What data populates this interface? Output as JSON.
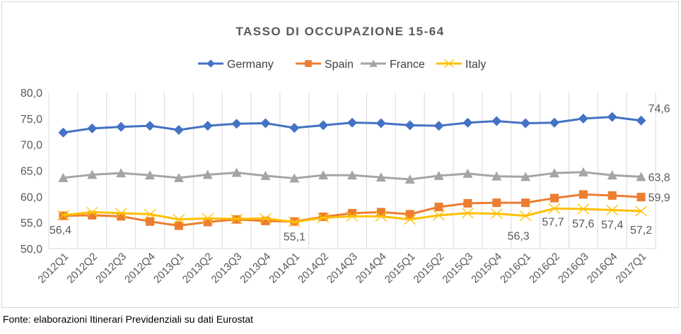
{
  "chart_data": {
    "type": "line",
    "title": "TASSO DI OCCUPAZIONE  15-64",
    "xlabel": "",
    "ylabel": "",
    "ylim": [
      50,
      80
    ],
    "yticks": [
      "50,0",
      "55,0",
      "60,0",
      "65,0",
      "70,0",
      "75,0",
      "80,0"
    ],
    "grid": "vertical",
    "legend_position": "top",
    "categories": [
      "2012Q1",
      "2012Q2",
      "2012Q3",
      "2012Q4",
      "2013Q1",
      "2013Q2",
      "2013Q3",
      "2013Q4",
      "2014Q1",
      "2014Q2",
      "2014Q3",
      "2014Q4",
      "2015Q1",
      "2015Q2",
      "2015Q3",
      "2015Q4",
      "2016Q1",
      "2016Q2",
      "2016Q3",
      "2016Q4",
      "2017Q1"
    ],
    "series": [
      {
        "name": "Germany",
        "color": "#4472c4",
        "marker": "diamond",
        "values": [
          72.3,
          73.1,
          73.4,
          73.6,
          72.8,
          73.6,
          74.0,
          74.1,
          73.2,
          73.7,
          74.2,
          74.1,
          73.7,
          73.6,
          74.2,
          74.5,
          74.1,
          74.2,
          75.0,
          75.3,
          74.6
        ],
        "labels": [
          {
            "index": 20,
            "text": "74,6"
          }
        ]
      },
      {
        "name": "Spain",
        "color": "#ed7d31",
        "marker": "square",
        "values": [
          56.3,
          56.4,
          56.2,
          55.2,
          54.4,
          55.1,
          55.6,
          55.3,
          55.2,
          56.1,
          56.8,
          57.0,
          56.6,
          58.0,
          58.7,
          58.8,
          58.8,
          59.7,
          60.4,
          60.2,
          59.9
        ],
        "labels": [
          {
            "index": 20,
            "text": "59,9"
          }
        ]
      },
      {
        "name": "France",
        "color": "#a5a5a5",
        "marker": "triangle",
        "values": [
          63.6,
          64.2,
          64.5,
          64.1,
          63.6,
          64.2,
          64.6,
          64.0,
          63.5,
          64.1,
          64.1,
          63.7,
          63.3,
          64.0,
          64.4,
          63.9,
          63.8,
          64.5,
          64.7,
          64.1,
          63.8
        ],
        "labels": [
          {
            "index": 20,
            "text": "63,8"
          }
        ]
      },
      {
        "name": "Italy",
        "color": "#ffc000",
        "marker": "x",
        "values": [
          56.4,
          57.0,
          56.8,
          56.6,
          55.6,
          55.8,
          55.7,
          55.8,
          55.1,
          55.9,
          56.2,
          56.2,
          55.6,
          56.4,
          56.8,
          56.7,
          56.3,
          57.7,
          57.6,
          57.4,
          57.2
        ],
        "labels": [
          {
            "index": 0,
            "text": "56,4"
          },
          {
            "index": 8,
            "text": "55,1"
          },
          {
            "index": 16,
            "text": "56,3"
          },
          {
            "index": 17,
            "text": "57,7"
          },
          {
            "index": 18,
            "text": "57,6"
          },
          {
            "index": 19,
            "text": "57,4"
          },
          {
            "index": 20,
            "text": "57,2"
          }
        ]
      }
    ]
  },
  "source": "Fonte: elaborazioni Itinerari Previdenziali su dati Eurostat"
}
